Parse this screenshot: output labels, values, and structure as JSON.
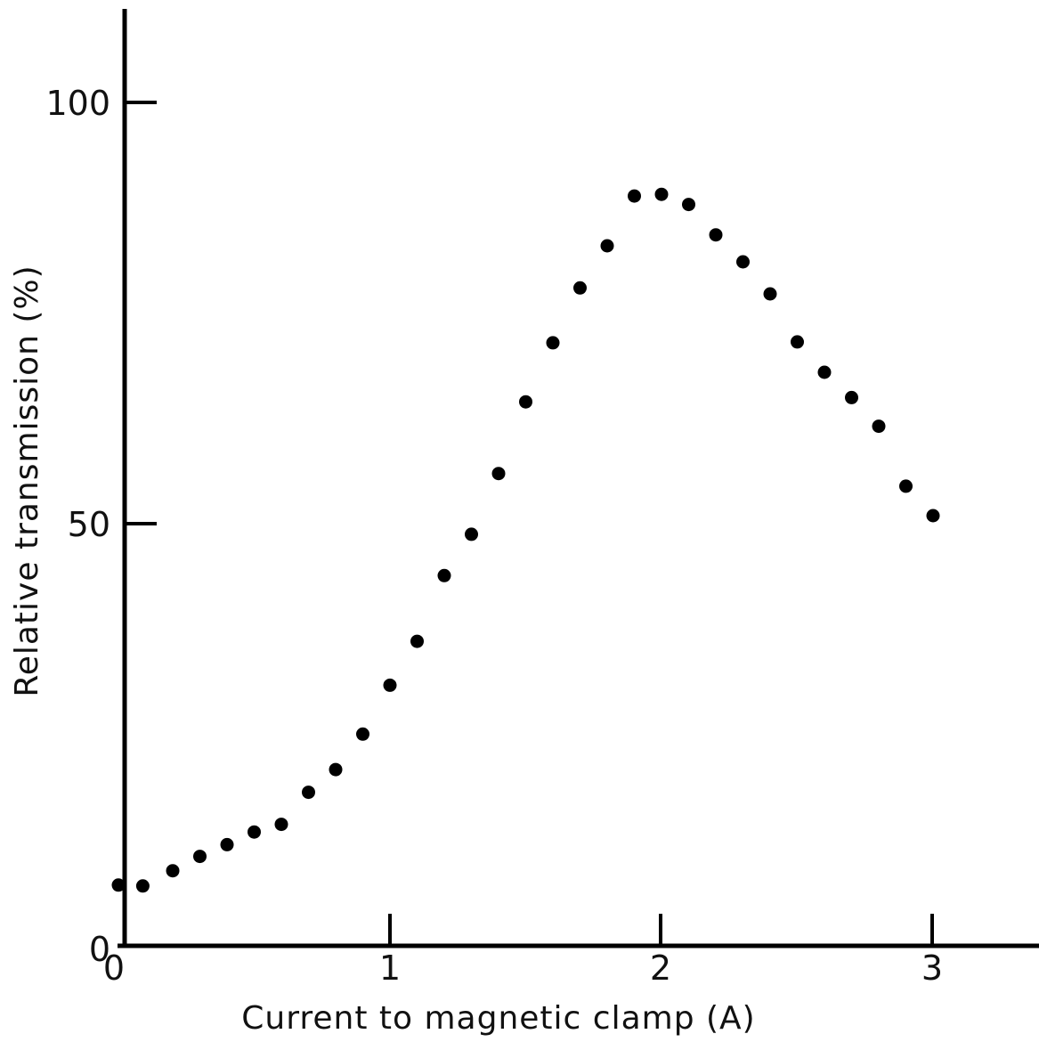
{
  "chart_data": {
    "type": "scatter",
    "title": "",
    "xlabel": "Current to magnetic clamp (A)",
    "ylabel": "Relative transmission (%)",
    "xlim": [
      0,
      3.4
    ],
    "ylim": [
      0,
      110
    ],
    "x_ticks": [
      0,
      1,
      2,
      3
    ],
    "x_tick_labels": [
      "0",
      "1",
      "2",
      "3"
    ],
    "y_ticks": [
      0,
      50,
      100
    ],
    "y_tick_labels": [
      "0",
      "50",
      "100"
    ],
    "grid": false,
    "legend": "none",
    "marker_color": "#000000",
    "series": [
      {
        "x": [
          0.0,
          0.09,
          0.2,
          0.3,
          0.4,
          0.5,
          0.6,
          0.7,
          0.8,
          0.9,
          1.0,
          1.1,
          1.2,
          1.3,
          1.4,
          1.5,
          1.6,
          1.7,
          1.8,
          1.9,
          2.0,
          2.1,
          2.2,
          2.3,
          2.4,
          2.5,
          2.6,
          2.7,
          2.8,
          2.9,
          3.0
        ],
        "y": [
          7.2,
          7.1,
          8.9,
          10.6,
          12.0,
          13.5,
          14.4,
          18.2,
          20.9,
          25.1,
          30.9,
          36.1,
          43.9,
          48.8,
          56.0,
          64.5,
          71.5,
          78.0,
          83.0,
          88.9,
          89.1,
          87.9,
          84.3,
          81.1,
          77.3,
          71.6,
          68.0,
          65.0,
          61.6,
          54.5,
          51.0
        ]
      }
    ]
  }
}
